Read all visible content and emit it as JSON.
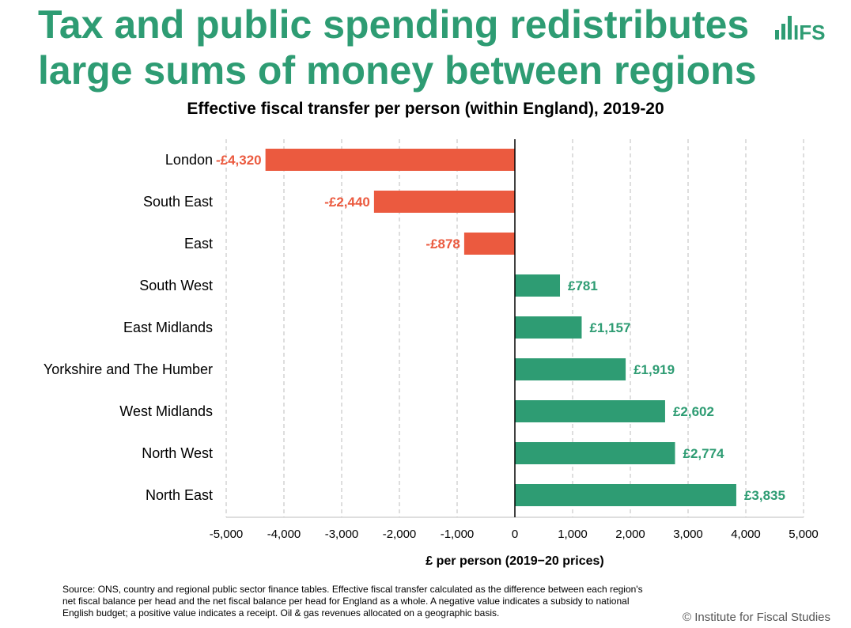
{
  "headline": "Tax and public spending redistributes large sums of money between regions",
  "logo_text": "IFS",
  "colors": {
    "brand": "#2e9c73",
    "negative": "#eb5a3f",
    "positive": "#2e9c73"
  },
  "chart_data": {
    "type": "bar",
    "orientation": "horizontal",
    "title": "Effective fiscal transfer per person (within England), 2019-20",
    "xlabel": "£ per person (2019−20 prices)",
    "ylabel": "",
    "xlim": [
      -5000,
      5000
    ],
    "xticks": [
      -5000,
      -4000,
      -3000,
      -2000,
      -1000,
      0,
      1000,
      2000,
      3000,
      4000,
      5000
    ],
    "xtick_labels": [
      "-5,000",
      "-4,000",
      "-3,000",
      "-2,000",
      "-1,000",
      "0",
      "1,000",
      "2,000",
      "3,000",
      "4,000",
      "5,000"
    ],
    "grid": "vertical dashed",
    "categories": [
      "London",
      "South East",
      "East",
      "South West",
      "East Midlands",
      "Yorkshire and The Humber",
      "West Midlands",
      "North West",
      "North East"
    ],
    "values": [
      -4320,
      -2440,
      -878,
      781,
      1157,
      1919,
      2602,
      2774,
      3835
    ],
    "data_labels": [
      "-£4,320",
      "-£2,440",
      "-£878",
      "£781",
      "£1,157",
      "£1,919",
      "£2,602",
      "£2,774",
      "£3,835"
    ]
  },
  "footnote": "Source: ONS, country and regional public sector finance tables. Effective fiscal transfer calculated as the difference between each region's net fiscal balance per head and the net fiscal balance per head for England as a whole. A negative value indicates a subsidy to national English budget; a positive value indicates a receipt. Oil & gas revenues allocated on a geographic basis.",
  "copyright": "© Institute for Fiscal Studies"
}
